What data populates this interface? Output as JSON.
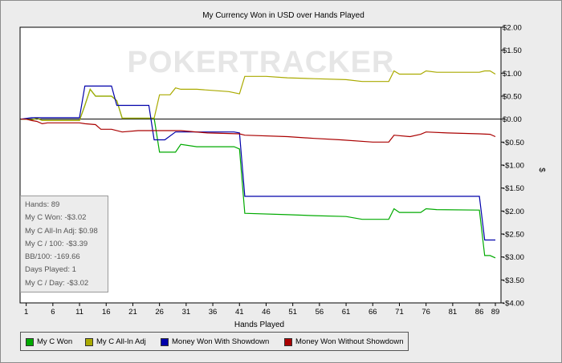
{
  "chart_data": {
    "type": "line",
    "title": "My Currency Won in USD over Hands Played",
    "xlabel": "Hands Played",
    "ylabel": "$",
    "watermark": "POKERTRACKER",
    "x_ticks": [
      1,
      6,
      11,
      16,
      21,
      26,
      31,
      36,
      41,
      46,
      51,
      56,
      61,
      66,
      71,
      76,
      81,
      86,
      89
    ],
    "xlim": [
      0,
      89
    ],
    "ylim": [
      -4.0,
      2.0
    ],
    "y_ticks": [
      2.0,
      1.5,
      1.0,
      0.5,
      0.0,
      -0.5,
      -1.0,
      -1.5,
      -2.0,
      -2.5,
      -3.0,
      -3.5,
      -4.0
    ],
    "y_tick_labels": [
      "$2.00",
      "$1.50",
      "$1.00",
      "$0.50",
      "$0.00",
      "-$0.50",
      "-$1.00",
      "-$1.50",
      "-$2.00",
      "-$2.50",
      "-$3.00",
      "-$3.50",
      "-$4.00"
    ],
    "series": [
      {
        "name": "My C Won",
        "color": "#00aa00",
        "points": [
          [
            0,
            0
          ],
          [
            1,
            0
          ],
          [
            2,
            -0.02
          ],
          [
            3,
            0.02
          ],
          [
            4,
            -0.03
          ],
          [
            11,
            -0.03
          ],
          [
            12,
            0.3
          ],
          [
            13,
            0.65
          ],
          [
            14,
            0.5
          ],
          [
            17,
            0.5
          ],
          [
            18,
            0.4
          ],
          [
            19,
            0.02
          ],
          [
            25,
            0.02
          ],
          [
            26,
            -0.72
          ],
          [
            29,
            -0.72
          ],
          [
            30,
            -0.55
          ],
          [
            33,
            -0.6
          ],
          [
            40,
            -0.6
          ],
          [
            41,
            -0.65
          ],
          [
            42,
            -2.05
          ],
          [
            50,
            -2.08
          ],
          [
            55,
            -2.1
          ],
          [
            61,
            -2.12
          ],
          [
            64,
            -2.18
          ],
          [
            69,
            -2.18
          ],
          [
            70,
            -1.95
          ],
          [
            71,
            -2.03
          ],
          [
            75,
            -2.03
          ],
          [
            76,
            -1.95
          ],
          [
            78,
            -1.97
          ],
          [
            86,
            -1.98
          ],
          [
            87,
            -2.97
          ],
          [
            88,
            -2.97
          ],
          [
            89,
            -3.02
          ]
        ]
      },
      {
        "name": "My C All-In Adj",
        "color": "#aaaa00",
        "points": [
          [
            0,
            0
          ],
          [
            1,
            0
          ],
          [
            2,
            -0.02
          ],
          [
            3,
            0.02
          ],
          [
            4,
            -0.03
          ],
          [
            11,
            -0.03
          ],
          [
            12,
            0.3
          ],
          [
            13,
            0.65
          ],
          [
            14,
            0.5
          ],
          [
            17,
            0.5
          ],
          [
            18,
            0.4
          ],
          [
            19,
            0.02
          ],
          [
            25,
            0.02
          ],
          [
            26,
            0.53
          ],
          [
            28,
            0.53
          ],
          [
            29,
            0.68
          ],
          [
            30,
            0.65
          ],
          [
            33,
            0.65
          ],
          [
            39,
            0.6
          ],
          [
            41,
            0.55
          ],
          [
            42,
            0.93
          ],
          [
            46,
            0.93
          ],
          [
            50,
            0.9
          ],
          [
            55,
            0.88
          ],
          [
            61,
            0.86
          ],
          [
            64,
            0.82
          ],
          [
            69,
            0.82
          ],
          [
            70,
            1.05
          ],
          [
            71,
            0.98
          ],
          [
            75,
            0.98
          ],
          [
            76,
            1.05
          ],
          [
            78,
            1.02
          ],
          [
            86,
            1.02
          ],
          [
            87,
            1.05
          ],
          [
            88,
            1.05
          ],
          [
            89,
            0.98
          ]
        ]
      },
      {
        "name": "Money Won With Showdown",
        "color": "#0000aa",
        "points": [
          [
            0,
            0
          ],
          [
            2,
            0.03
          ],
          [
            11,
            0.03
          ],
          [
            12,
            0.72
          ],
          [
            17,
            0.72
          ],
          [
            18,
            0.3
          ],
          [
            24,
            0.3
          ],
          [
            25,
            -0.45
          ],
          [
            27,
            -0.45
          ],
          [
            29,
            -0.28
          ],
          [
            40,
            -0.28
          ],
          [
            41,
            -0.3
          ],
          [
            42,
            -1.68
          ],
          [
            86,
            -1.68
          ],
          [
            87,
            -2.63
          ],
          [
            89,
            -2.63
          ]
        ]
      },
      {
        "name": "Money Won Without Showdown",
        "color": "#aa0000",
        "points": [
          [
            0,
            0
          ],
          [
            1,
            0
          ],
          [
            2,
            -0.03
          ],
          [
            3,
            -0.05
          ],
          [
            4,
            -0.1
          ],
          [
            5,
            -0.08
          ],
          [
            11,
            -0.08
          ],
          [
            12,
            -0.1
          ],
          [
            14,
            -0.12
          ],
          [
            15,
            -0.22
          ],
          [
            17,
            -0.22
          ],
          [
            19,
            -0.28
          ],
          [
            22,
            -0.25
          ],
          [
            30,
            -0.25
          ],
          [
            35,
            -0.3
          ],
          [
            41,
            -0.32
          ],
          [
            42,
            -0.35
          ],
          [
            50,
            -0.38
          ],
          [
            55,
            -0.42
          ],
          [
            60,
            -0.45
          ],
          [
            66,
            -0.5
          ],
          [
            69,
            -0.5
          ],
          [
            70,
            -0.35
          ],
          [
            73,
            -0.38
          ],
          [
            75,
            -0.33
          ],
          [
            76,
            -0.28
          ],
          [
            80,
            -0.3
          ],
          [
            86,
            -0.32
          ],
          [
            88,
            -0.33
          ],
          [
            89,
            -0.38
          ]
        ]
      }
    ]
  },
  "stats": {
    "hands": "Hands: 89",
    "won": "My C Won: -$3.02",
    "allin": "My C All-In Adj: $0.98",
    "per100": "My C / 100: -$3.39",
    "bb100": "BB/100: -169.66",
    "days": "Days Played: 1",
    "perday": "My C / Day: -$3.02"
  },
  "legend": {
    "items": [
      {
        "label": "My C Won",
        "color": "#00aa00"
      },
      {
        "label": "My C All-In Adj",
        "color": "#aaaa00"
      },
      {
        "label": "Money Won With Showdown",
        "color": "#0000aa"
      },
      {
        "label": "Money Won Without Showdown",
        "color": "#aa0000"
      }
    ]
  }
}
